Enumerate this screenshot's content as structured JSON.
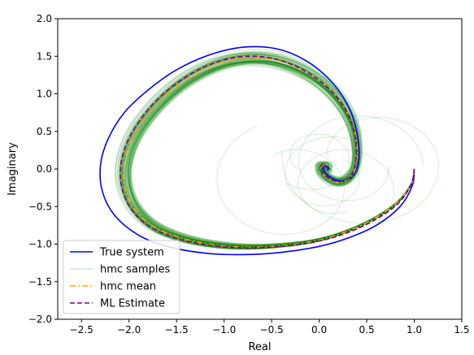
{
  "chart_data": {
    "type": "line",
    "xlabel": "Real",
    "ylabel": "Imaginary",
    "xlim": [
      -2.75,
      1.5
    ],
    "ylim": [
      -2.0,
      2.0
    ],
    "xticks": [
      -2.5,
      -2.0,
      -1.5,
      -1.0,
      -0.5,
      0.0,
      0.5,
      1.0,
      1.5
    ],
    "xtick_labels": [
      "−2.5",
      "−2.0",
      "−1.5",
      "−1.0",
      "−0.5",
      "0.0",
      "0.5",
      "1.0",
      "1.5"
    ],
    "yticks": [
      -2.0,
      -1.5,
      -1.0,
      -0.5,
      0.0,
      0.5,
      1.0,
      1.5,
      2.0
    ],
    "ytick_labels": [
      "−2.0",
      "−1.5",
      "−1.0",
      "−0.5",
      "0.0",
      "0.5",
      "1.0",
      "1.5",
      "2.0"
    ],
    "grid": false,
    "legend_position": "lower-left",
    "series": [
      {
        "name": "True system",
        "style": "solid",
        "color": "#0000ff",
        "x": [
          1.0,
          0.98,
          0.85,
          0.6,
          0.3,
          0.0,
          -0.4,
          -0.8,
          -1.2,
          -1.6,
          -1.9,
          -2.15,
          -2.28,
          -2.3,
          -2.22,
          -2.05,
          -1.8,
          -1.5,
          -1.15,
          -0.8,
          -0.45,
          -0.15,
          0.1,
          0.28,
          0.38,
          0.42,
          0.4,
          0.33,
          0.23,
          0.13,
          0.06,
          0.04,
          0.06,
          0.09,
          0.1,
          0.08
        ],
        "y": [
          0.0,
          -0.22,
          -0.5,
          -0.75,
          -0.92,
          -1.03,
          -1.11,
          -1.14,
          -1.12,
          -1.03,
          -0.88,
          -0.62,
          -0.3,
          0.05,
          0.4,
          0.75,
          1.05,
          1.32,
          1.52,
          1.62,
          1.6,
          1.45,
          1.2,
          0.9,
          0.58,
          0.25,
          0.02,
          -0.12,
          -0.16,
          -0.12,
          -0.04,
          0.02,
          0.04,
          0.03,
          0.0,
          -0.02
        ]
      },
      {
        "name": "hmc mean",
        "style": "dashdot",
        "color": "#ffa500",
        "x": [
          1.0,
          0.97,
          0.82,
          0.55,
          0.25,
          -0.05,
          -0.4,
          -0.75,
          -1.1,
          -1.45,
          -1.75,
          -1.95,
          -2.05,
          -2.05,
          -1.95,
          -1.75,
          -1.5,
          -1.2,
          -0.88,
          -0.55,
          -0.25,
          0.02,
          0.22,
          0.35,
          0.4,
          0.38,
          0.3,
          0.2,
          0.11,
          0.04,
          0.01,
          0.02,
          0.06,
          0.09,
          0.08
        ],
        "y": [
          0.0,
          -0.2,
          -0.45,
          -0.68,
          -0.85,
          -0.96,
          -1.02,
          -1.04,
          -1.01,
          -0.92,
          -0.76,
          -0.52,
          -0.22,
          0.1,
          0.45,
          0.8,
          1.1,
          1.33,
          1.46,
          1.47,
          1.36,
          1.16,
          0.9,
          0.6,
          0.28,
          0.0,
          -0.14,
          -0.18,
          -0.14,
          -0.07,
          0.0,
          0.04,
          0.04,
          0.01,
          -0.02
        ]
      },
      {
        "name": "ML Estimate",
        "style": "dashed",
        "color": "#800080",
        "x": [
          1.0,
          0.97,
          0.83,
          0.57,
          0.27,
          -0.04,
          -0.4,
          -0.76,
          -1.12,
          -1.48,
          -1.78,
          -1.98,
          -2.08,
          -2.08,
          -1.98,
          -1.78,
          -1.52,
          -1.22,
          -0.9,
          -0.57,
          -0.27,
          0.0,
          0.21,
          0.34,
          0.39,
          0.37,
          0.3,
          0.2,
          0.11,
          0.04,
          0.01,
          0.02,
          0.06,
          0.09,
          0.08
        ],
        "y": [
          0.0,
          -0.2,
          -0.46,
          -0.69,
          -0.86,
          -0.97,
          -1.03,
          -1.05,
          -1.02,
          -0.93,
          -0.77,
          -0.53,
          -0.22,
          0.11,
          0.46,
          0.82,
          1.12,
          1.35,
          1.48,
          1.49,
          1.38,
          1.18,
          0.92,
          0.62,
          0.29,
          0.01,
          -0.13,
          -0.17,
          -0.13,
          -0.06,
          0.01,
          0.05,
          0.04,
          0.01,
          -0.02
        ]
      },
      {
        "name": "hmc samples",
        "style": "solid",
        "color": "#008000",
        "note_samples": "many semi-transparent green sample trajectories clustered around the mean spiral, several wider loops near the origin"
      }
    ],
    "legend": [
      "True system",
      "hmc samples",
      "hmc mean",
      "ML Estimate"
    ]
  }
}
